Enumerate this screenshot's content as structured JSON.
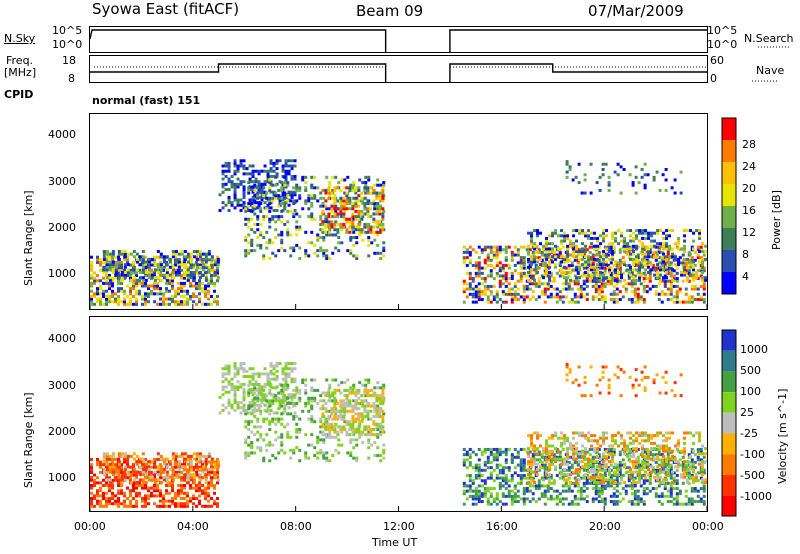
{
  "header": {
    "station": "Syowa East (fitACF)",
    "beam": "Beam 09",
    "date": "07/Mar/2009"
  },
  "panels": {
    "nsky": {
      "label": "N.Sky",
      "ticks": [
        "10^5",
        "10^0"
      ],
      "right_label": "N.Search",
      "right_ticks": [
        "10^5",
        "10^0"
      ]
    },
    "freq": {
      "label_line1": "Freq.",
      "label_line2": "[MHz]",
      "ticks": [
        "18",
        "8"
      ],
      "right_label": "Nave",
      "right_ticks": [
        "60",
        "0"
      ]
    },
    "cpid": {
      "label": "CPID",
      "value": "normal (fast) 151"
    }
  },
  "range_axis": {
    "label": "Slant Range [km]",
    "ticks": [
      "4000",
      "3000",
      "2000",
      "1000"
    ]
  },
  "time_axis": {
    "label": "Time UT",
    "ticks": [
      "00:00",
      "04:00",
      "08:00",
      "12:00",
      "16:00",
      "20:00",
      "00:00"
    ]
  },
  "power_scale": {
    "label": "Power [dB]",
    "ticks": [
      "28",
      "24",
      "20",
      "16",
      "12",
      "8",
      "4"
    ],
    "colors": [
      "#ff0000",
      "#ff7a00",
      "#ffc000",
      "#e8e400",
      "#6fb04b",
      "#3e7f5a",
      "#2a4fb0",
      "#0000ff"
    ]
  },
  "velocity_scale": {
    "label": "Velocity [m s^-1]",
    "ticks": [
      "1000",
      "500",
      "100",
      "25",
      "-25",
      "-100",
      "-500",
      "-1000"
    ],
    "colors": [
      "#2233cc",
      "#2e7b8a",
      "#44a040",
      "#7ed321",
      "#bdbdbd",
      "#ffb000",
      "#ff7a00",
      "#ff3300",
      "#ff0000"
    ]
  },
  "chart_data": {
    "type": "heatmap",
    "title": "Syowa East (fitACF)",
    "xlabel": "Time UT",
    "ylabel": "Slant Range [km]",
    "xlim": [
      "00:00",
      "24:00"
    ],
    "ylim": [
      200,
      4600
    ],
    "data_gap": [
      "11:30",
      "14:00"
    ],
    "frequency_mhz_steps": [
      {
        "from": "00:00",
        "to": "05:00",
        "value": 10
      },
      {
        "from": "05:00",
        "to": "11:30",
        "value": 14
      },
      {
        "from": "14:00",
        "to": "18:00",
        "value": 14
      },
      {
        "from": "18:00",
        "to": "24:00",
        "value": 10
      }
    ],
    "grid": false
  }
}
